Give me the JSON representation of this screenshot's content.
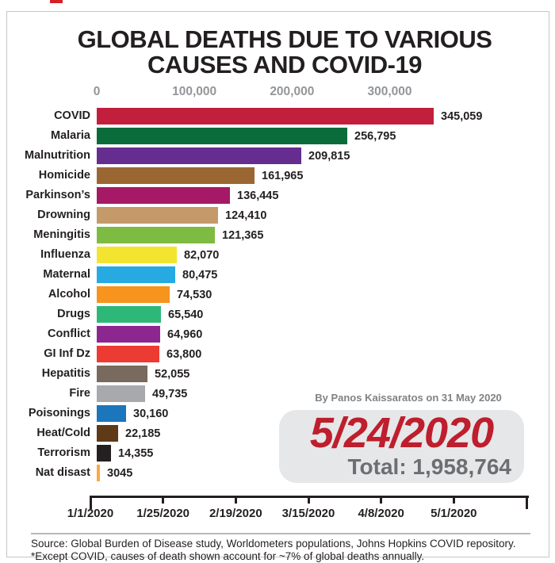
{
  "page": {
    "title_line1": "GLOBAL DEATHS DUE TO VARIOUS",
    "title_line2": "CAUSES AND COVID-19",
    "byline": "By Panos Kaissaratos on 31 May 2020",
    "current_date": "5/24/2020",
    "total_label": "Total: 1,958,764",
    "source_line1": "Source: Global Burden of Disease study, Worldometers populations, Johns Hopkins COVID repository.",
    "source_line2": "*Except COVID, causes of death shown account for ~7% of global deaths annually."
  },
  "chart_data": {
    "type": "bar",
    "orientation": "horizontal",
    "title": "GLOBAL DEATHS DUE TO VARIOUS CAUSES AND COVID-19",
    "x_axis": {
      "tick_values": [
        0,
        100000,
        200000,
        300000
      ],
      "tick_labels": [
        "0",
        "100,000",
        "200,000",
        "300,000"
      ],
      "xlim": [
        0,
        450000
      ],
      "position": "top",
      "grid": false
    },
    "categories": [
      "COVID",
      "Malaria",
      "Malnutrition",
      "Homicide",
      "Parkinson’s",
      "Drowning",
      "Meningitis",
      "Influenza",
      "Maternal",
      "Alcohol",
      "Drugs",
      "Conflict",
      "GI Inf Dz",
      "Hepatitis",
      "Fire",
      "Poisonings",
      "Heat/Cold",
      "Terrorism",
      "Nat disast"
    ],
    "values": [
      345059,
      256795,
      209815,
      161965,
      136445,
      124410,
      121365,
      82070,
      80475,
      74530,
      65540,
      64960,
      63800,
      52055,
      49735,
      30160,
      22185,
      14355,
      3045
    ],
    "value_labels": [
      "345,059",
      "256,795",
      "209,815",
      "161,965",
      "136,445",
      "124,410",
      "121,365",
      "82,070",
      "80,475",
      "74,530",
      "65,540",
      "64,960",
      "63,800",
      "52,055",
      "49,735",
      "30,160",
      "22,185",
      "14,355",
      "3045"
    ],
    "bar_colors": [
      "#c11f3b",
      "#0a6b3b",
      "#662d91",
      "#9a6733",
      "#a51966",
      "#c49a6b",
      "#7ebb42",
      "#f3e52f",
      "#27aae1",
      "#f7941e",
      "#2eb878",
      "#8d2790",
      "#ec3b33",
      "#786a5e",
      "#a7a9ac",
      "#1c76bc",
      "#5e3a18",
      "#241f20",
      "#fba942"
    ],
    "date_axis": {
      "tick_labels": [
        "1/1/2020",
        "1/25/2020",
        "2/19/2020",
        "3/15/2020",
        "4/8/2020",
        "5/1/2020"
      ],
      "trailing_unlabeled_tick": true,
      "position": "bottom"
    },
    "annotations": {
      "byline": "By Panos Kaissaratos on 31 May 2020",
      "current_date": "5/24/2020",
      "total_text": "Total: 1,958,764",
      "total_value": 1958764,
      "date_color": "#be1e2d",
      "total_color": "#6d6e71",
      "box_color": "#e6e7e8"
    }
  }
}
